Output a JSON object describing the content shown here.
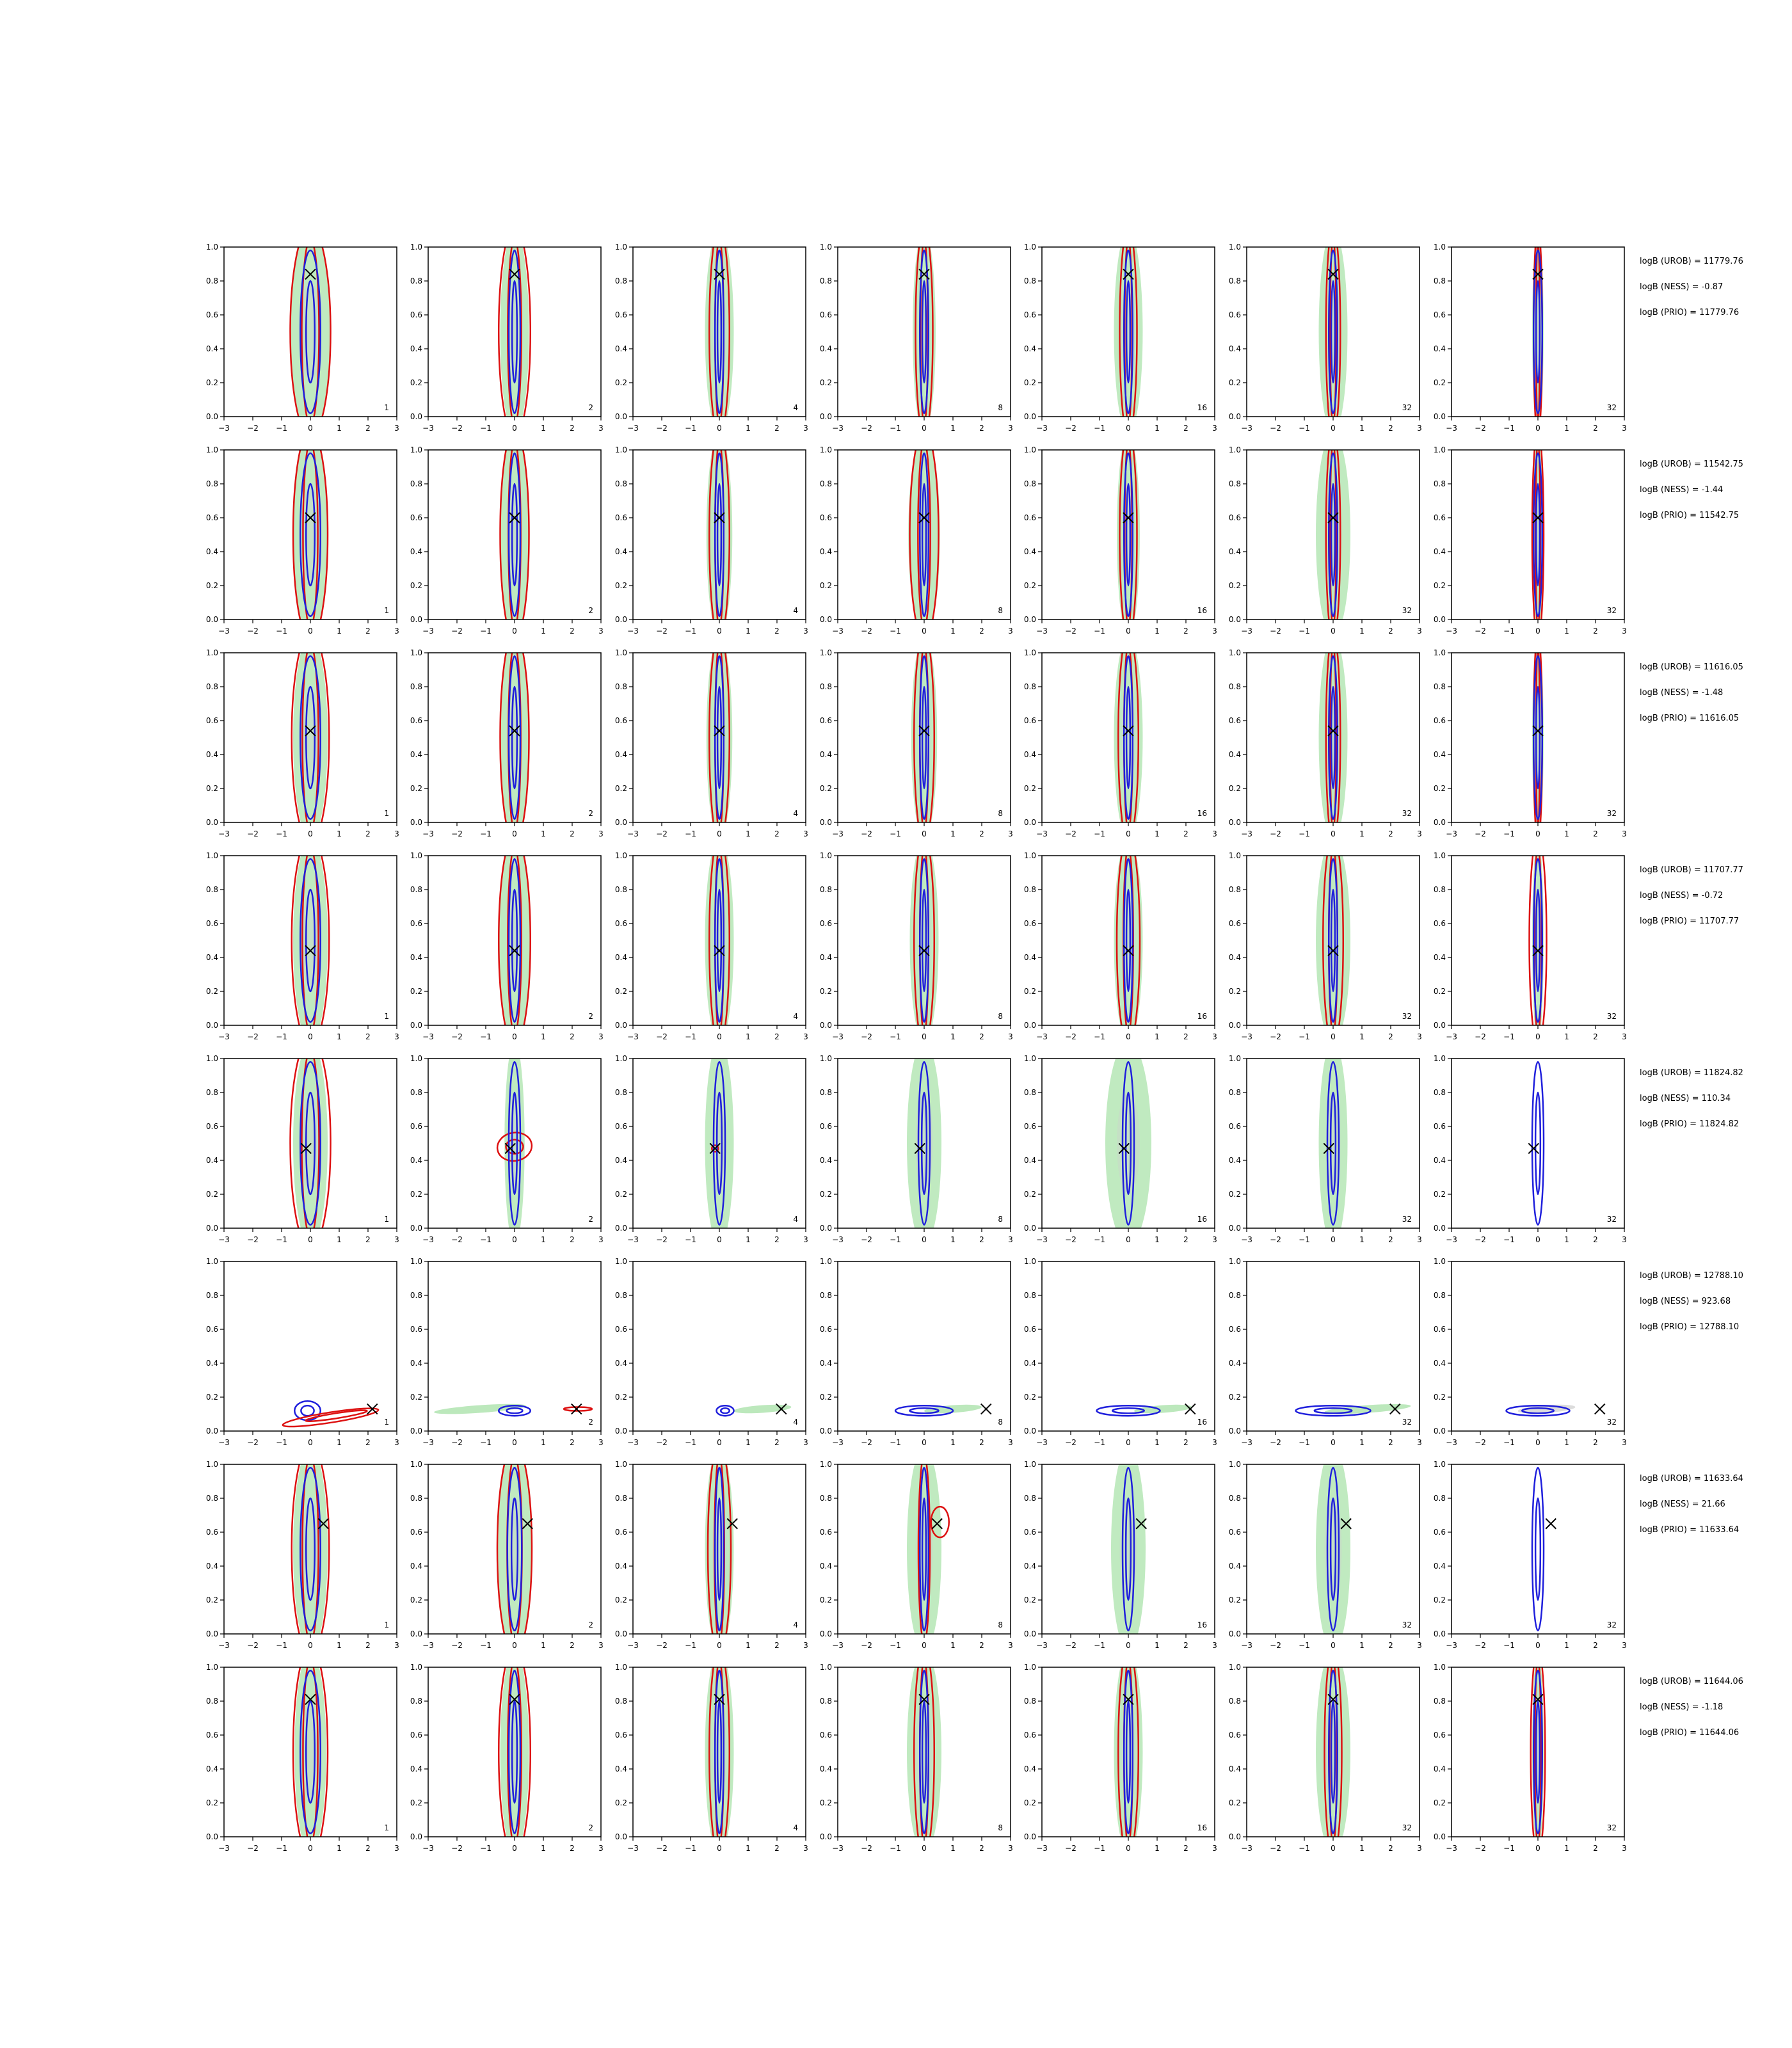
{
  "chart_data": {
    "type": "contour",
    "grid": {
      "rows": 8,
      "cols": 7
    },
    "xlim": [
      -3,
      3
    ],
    "ylim": [
      0,
      1
    ],
    "xticks": [
      -3,
      -2,
      -1,
      0,
      1,
      2,
      3
    ],
    "yticks": [
      0.0,
      0.2,
      0.4,
      0.6,
      0.8,
      1.0
    ],
    "col_labels": [
      "1",
      "2",
      "4",
      "8",
      "16",
      "32",
      "32"
    ],
    "colors": {
      "filled": "#b5e6b5",
      "filled_core": "#c8d8c8",
      "blue": "#1f1fdc",
      "red": "#dd1111",
      "marker": "#000000"
    },
    "rows": [
      {
        "truth": [
          0.0,
          0.84
        ],
        "annotations": [
          "logB (UROB) = 11779.76",
          "logB (NESS) = -0.87",
          "logB (PRIO) = 11779.76"
        ],
        "shape": "vertical",
        "green_w": [
          0.7,
          0.5,
          0.5,
          0.4,
          0.5,
          0.5,
          0.2
        ],
        "blue_w": [
          0.35,
          0.2,
          0.15,
          0.15,
          0.15,
          0.15,
          0.15
        ],
        "red_w": [
          0.7,
          0.55,
          0.35,
          0.3,
          0.3,
          0.25,
          0.15
        ]
      },
      {
        "truth": [
          0.0,
          0.6
        ],
        "annotations": [
          "logB (UROB) = 11542.75",
          "logB (NESS) = -1.44",
          "logB (PRIO) = 11542.75"
        ],
        "shape": "vertical",
        "green_w": [
          0.6,
          0.5,
          0.45,
          0.55,
          0.4,
          0.6,
          0.2
        ],
        "blue_w": [
          0.35,
          0.2,
          0.15,
          0.15,
          0.15,
          0.15,
          0.15
        ],
        "red_w": [
          0.6,
          0.5,
          0.35,
          0.5,
          0.3,
          0.25,
          0.2
        ]
      },
      {
        "truth": [
          0.0,
          0.54
        ],
        "annotations": [
          "logB (UROB) = 11616.05",
          "logB (NESS) = -1.48",
          "logB (PRIO) = 11616.05"
        ],
        "shape": "vertical",
        "green_w": [
          0.6,
          0.5,
          0.45,
          0.45,
          0.5,
          0.5,
          0.2
        ],
        "blue_w": [
          0.35,
          0.2,
          0.15,
          0.15,
          0.15,
          0.15,
          0.15
        ],
        "red_w": [
          0.65,
          0.5,
          0.35,
          0.35,
          0.35,
          0.25,
          0.15
        ]
      },
      {
        "truth": [
          0.0,
          0.44
        ],
        "annotations": [
          "logB (UROB) = 11707.77",
          "logB (NESS) = -0.72",
          "logB (PRIO) = 11707.77"
        ],
        "shape": "vertical",
        "green_w": [
          0.6,
          0.55,
          0.5,
          0.5,
          0.5,
          0.6,
          0.2
        ],
        "blue_w": [
          0.35,
          0.2,
          0.15,
          0.15,
          0.15,
          0.15,
          0.15
        ],
        "red_w": [
          0.65,
          0.55,
          0.35,
          0.35,
          0.4,
          0.35,
          0.3
        ]
      },
      {
        "truth": [
          -0.15,
          0.47
        ],
        "annotations": [
          "logB (UROB) = 11824.82",
          "logB (NESS) = 110.34",
          "logB (PRIO) = 11824.82"
        ],
        "shape": "special5",
        "green_w": [
          0.6,
          0.35,
          0.5,
          0.6,
          0.8,
          0.5,
          0.0
        ],
        "blue_w": [
          0.35,
          0.2,
          0.2,
          0.2,
          0.2,
          0.2,
          0.2
        ],
        "red_w": [
          0.7,
          0.6,
          0.12,
          0,
          0,
          0,
          0
        ]
      },
      {
        "truth": [
          2.15,
          0.13
        ],
        "annotations": [
          "logB (UROB) = 12788.10",
          "logB (NESS) = 923.68",
          "logB (PRIO) = 12788.10"
        ],
        "shape": "horizontal",
        "green_w": [
          0,
          0,
          0,
          0,
          0,
          0,
          0
        ],
        "blue_w": [
          0,
          0,
          0,
          0,
          0,
          0,
          0
        ],
        "red_w": [
          0,
          0,
          0,
          0,
          0,
          0,
          0
        ]
      },
      {
        "truth": [
          0.45,
          0.65
        ],
        "annotations": [
          "logB (UROB) = 11633.64",
          "logB (NESS) = 21.66",
          "logB (PRIO) = 11633.64"
        ],
        "shape": "vertical",
        "green_w": [
          0.6,
          0.6,
          0.5,
          0.6,
          0.6,
          0.6,
          0.0
        ],
        "blue_w": [
          0.35,
          0.25,
          0.15,
          0.15,
          0.2,
          0.2,
          0.2
        ],
        "red_w": [
          0.65,
          0.6,
          0.4,
          0.2,
          0,
          0,
          0
        ]
      },
      {
        "truth": [
          0.0,
          0.81
        ],
        "annotations": [
          "logB (UROB) = 11644.06",
          "logB (NESS) = -1.18",
          "logB (PRIO) = 11644.06"
        ],
        "shape": "vertical",
        "green_w": [
          0.55,
          0.5,
          0.5,
          0.6,
          0.5,
          0.6,
          0.2
        ],
        "blue_w": [
          0.35,
          0.2,
          0.15,
          0.15,
          0.15,
          0.15,
          0.15
        ],
        "red_w": [
          0.6,
          0.55,
          0.35,
          0.35,
          0.35,
          0.3,
          0.25
        ]
      }
    ]
  }
}
